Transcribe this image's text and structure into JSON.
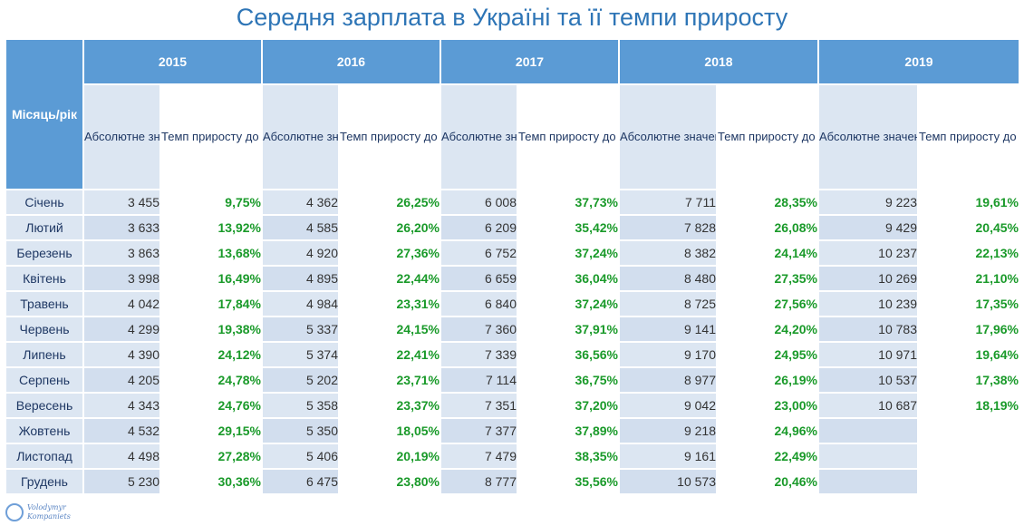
{
  "title": "Середня зарплата в Україні та її темпи приросту",
  "header": {
    "corner": "Місяць/рік",
    "years": [
      "2015",
      "2016",
      "2017",
      "2018",
      "2019"
    ],
    "abs_label": "Абсолютне значення (грн)",
    "rate_label": "Темп приросту до відповідного місяця минулого року"
  },
  "rows": [
    {
      "month": "Січень",
      "v": [
        [
          "3 455",
          "9,75%"
        ],
        [
          "4 362",
          "26,25%"
        ],
        [
          "6 008",
          "37,73%"
        ],
        [
          "7 711",
          "28,35%"
        ],
        [
          "9 223",
          "19,61%"
        ]
      ]
    },
    {
      "month": "Лютий",
      "v": [
        [
          "3 633",
          "13,92%"
        ],
        [
          "4 585",
          "26,20%"
        ],
        [
          "6 209",
          "35,42%"
        ],
        [
          "7 828",
          "26,08%"
        ],
        [
          "9 429",
          "20,45%"
        ]
      ]
    },
    {
      "month": "Березень",
      "v": [
        [
          "3 863",
          "13,68%"
        ],
        [
          "4 920",
          "27,36%"
        ],
        [
          "6 752",
          "37,24%"
        ],
        [
          "8 382",
          "24,14%"
        ],
        [
          "10 237",
          "22,13%"
        ]
      ]
    },
    {
      "month": "Квітень",
      "v": [
        [
          "3 998",
          "16,49%"
        ],
        [
          "4 895",
          "22,44%"
        ],
        [
          "6 659",
          "36,04%"
        ],
        [
          "8 480",
          "27,35%"
        ],
        [
          "10 269",
          "21,10%"
        ]
      ]
    },
    {
      "month": "Травень",
      "v": [
        [
          "4 042",
          "17,84%"
        ],
        [
          "4 984",
          "23,31%"
        ],
        [
          "6 840",
          "37,24%"
        ],
        [
          "8 725",
          "27,56%"
        ],
        [
          "10 239",
          "17,35%"
        ]
      ]
    },
    {
      "month": "Червень",
      "v": [
        [
          "4 299",
          "19,38%"
        ],
        [
          "5 337",
          "24,15%"
        ],
        [
          "7 360",
          "37,91%"
        ],
        [
          "9 141",
          "24,20%"
        ],
        [
          "10 783",
          "17,96%"
        ]
      ]
    },
    {
      "month": "Липень",
      "v": [
        [
          "4 390",
          "24,12%"
        ],
        [
          "5 374",
          "22,41%"
        ],
        [
          "7 339",
          "36,56%"
        ],
        [
          "9 170",
          "24,95%"
        ],
        [
          "10 971",
          "19,64%"
        ]
      ]
    },
    {
      "month": "Серпень",
      "v": [
        [
          "4 205",
          "24,78%"
        ],
        [
          "5 202",
          "23,71%"
        ],
        [
          "7 114",
          "36,75%"
        ],
        [
          "8 977",
          "26,19%"
        ],
        [
          "10 537",
          "17,38%"
        ]
      ]
    },
    {
      "month": "Вересень",
      "v": [
        [
          "4 343",
          "24,76%"
        ],
        [
          "5 358",
          "23,37%"
        ],
        [
          "7 351",
          "37,20%"
        ],
        [
          "9 042",
          "23,00%"
        ],
        [
          "10 687",
          "18,19%"
        ]
      ]
    },
    {
      "month": "Жовтень",
      "v": [
        [
          "4 532",
          "29,15%"
        ],
        [
          "5 350",
          "18,05%"
        ],
        [
          "7 377",
          "37,89%"
        ],
        [
          "9 218",
          "24,96%"
        ],
        [
          "",
          ""
        ]
      ]
    },
    {
      "month": "Листопад",
      "v": [
        [
          "4 498",
          "27,28%"
        ],
        [
          "5 406",
          "20,19%"
        ],
        [
          "7 479",
          "38,35%"
        ],
        [
          "9 161",
          "22,49%"
        ],
        [
          "",
          ""
        ]
      ]
    },
    {
      "month": "Грудень",
      "v": [
        [
          "5 230",
          "30,36%"
        ],
        [
          "6 475",
          "23,80%"
        ],
        [
          "8 777",
          "35,56%"
        ],
        [
          "10 573",
          "20,46%"
        ],
        [
          "",
          ""
        ]
      ]
    }
  ],
  "colors": {
    "header_blue": "#5b9bd5",
    "light_blue": "#dce6f2",
    "rate_green": "#1a9a2a",
    "title_blue": "#2e75b6"
  },
  "logo": {
    "line1": "Volodymyr",
    "line2": "Kompaniets"
  }
}
